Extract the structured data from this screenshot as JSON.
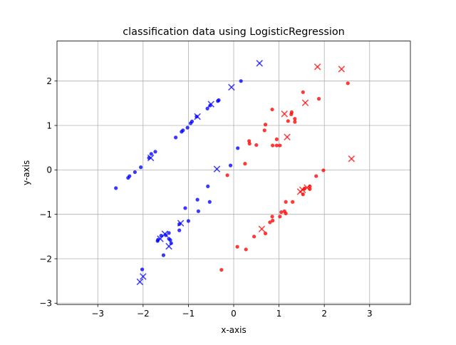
{
  "chart_data": {
    "type": "scatter",
    "title": "classification data using LogisticRegression",
    "xlabel": "x-axis",
    "ylabel": "y-axis",
    "xlim": [
      -3.9,
      3.9
    ],
    "ylim": [
      -3.03,
      2.9
    ],
    "xticks": [
      -3,
      -2,
      -1,
      0,
      1,
      2,
      3
    ],
    "yticks": [
      -3,
      -2,
      -1,
      0,
      1,
      2
    ],
    "xtick_labels": [
      "−3",
      "−2",
      "−1",
      "0",
      "1",
      "2",
      "3"
    ],
    "ytick_labels": [
      "−3",
      "−2",
      "−1",
      "0",
      "1",
      "2"
    ],
    "grid": true,
    "legend": "none",
    "series": [
      {
        "color": "#0000ff",
        "marker": "circle",
        "points": [
          [
            -2.6,
            -0.41
          ],
          [
            -2.33,
            -0.18
          ],
          [
            -2.3,
            -0.14
          ],
          [
            -2.18,
            -0.05
          ],
          [
            -2.05,
            0.06
          ],
          [
            -1.87,
            0.27
          ],
          [
            -1.82,
            0.36
          ],
          [
            -1.73,
            0.41
          ],
          [
            -1.28,
            0.73
          ],
          [
            -1.15,
            0.86
          ],
          [
            -1.12,
            0.89
          ],
          [
            -1.02,
            0.95
          ],
          [
            -0.95,
            1.05
          ],
          [
            -0.92,
            1.09
          ],
          [
            -0.82,
            1.2
          ],
          [
            -0.58,
            1.38
          ],
          [
            -0.52,
            1.45
          ],
          [
            -0.35,
            1.55
          ],
          [
            -0.33,
            1.57
          ],
          [
            0.16,
            2.0
          ],
          [
            -0.07,
            0.1
          ],
          [
            0.09,
            0.49
          ],
          [
            -0.57,
            -0.37
          ],
          [
            -0.53,
            -0.72
          ],
          [
            -0.8,
            -0.67
          ],
          [
            -0.78,
            -0.93
          ],
          [
            -1.07,
            -0.86
          ],
          [
            -1.0,
            -1.15
          ],
          [
            -1.2,
            -1.22
          ],
          [
            -1.2,
            -1.36
          ],
          [
            -1.43,
            -1.42
          ],
          [
            -1.5,
            -1.47
          ],
          [
            -1.6,
            -1.48
          ],
          [
            -1.67,
            -1.57
          ],
          [
            -1.68,
            -1.6
          ],
          [
            -1.4,
            -1.58
          ],
          [
            -1.38,
            -1.65
          ],
          [
            -1.55,
            -1.92
          ],
          [
            -2.02,
            -2.24
          ],
          [
            -1.43,
            -1.55
          ]
        ]
      },
      {
        "color": "#0000ff",
        "marker": "x",
        "points": [
          [
            0.57,
            2.4
          ],
          [
            -0.05,
            1.86
          ],
          [
            -0.5,
            1.48
          ],
          [
            -0.8,
            1.2
          ],
          [
            -1.83,
            0.27
          ],
          [
            -0.37,
            0.02
          ],
          [
            -1.17,
            -1.2
          ],
          [
            -1.52,
            -1.44
          ],
          [
            -1.62,
            -1.55
          ],
          [
            -1.43,
            -1.72
          ],
          [
            -2.0,
            -2.4
          ],
          [
            -2.07,
            -2.52
          ]
        ]
      },
      {
        "color": "#ff0000",
        "marker": "circle",
        "points": [
          [
            2.52,
            1.95
          ],
          [
            1.53,
            1.75
          ],
          [
            1.88,
            1.6
          ],
          [
            1.28,
            1.3
          ],
          [
            1.27,
            1.25
          ],
          [
            0.85,
            1.36
          ],
          [
            1.35,
            1.15
          ],
          [
            1.35,
            1.08
          ],
          [
            0.7,
            1.02
          ],
          [
            1.2,
            1.1
          ],
          [
            0.68,
            0.89
          ],
          [
            0.95,
            0.69
          ],
          [
            0.95,
            0.55
          ],
          [
            1.02,
            0.55
          ],
          [
            0.86,
            0.55
          ],
          [
            0.5,
            0.56
          ],
          [
            0.35,
            0.59
          ],
          [
            0.34,
            0.65
          ],
          [
            0.25,
            0.14
          ],
          [
            -0.14,
            -0.12
          ],
          [
            1.82,
            -0.14
          ],
          [
            1.98,
            -0.01
          ],
          [
            1.68,
            -0.37
          ],
          [
            1.68,
            -0.43
          ],
          [
            1.56,
            -0.42
          ],
          [
            1.53,
            -0.55
          ],
          [
            1.15,
            -0.72
          ],
          [
            1.3,
            -0.72
          ],
          [
            1.12,
            -0.93
          ],
          [
            1.15,
            -0.98
          ],
          [
            1.05,
            -0.95
          ],
          [
            1.02,
            -1.05
          ],
          [
            0.85,
            -1.05
          ],
          [
            0.86,
            -1.14
          ],
          [
            0.8,
            -1.18
          ],
          [
            0.7,
            -1.43
          ],
          [
            0.45,
            -1.5
          ],
          [
            0.08,
            -1.73
          ],
          [
            0.27,
            -1.79
          ],
          [
            -0.27,
            -2.25
          ]
        ]
      },
      {
        "color": "#ff0000",
        "marker": "x",
        "points": [
          [
            1.85,
            2.32
          ],
          [
            2.38,
            2.27
          ],
          [
            1.12,
            1.26
          ],
          [
            1.58,
            1.51
          ],
          [
            1.18,
            0.74
          ],
          [
            2.6,
            0.25
          ],
          [
            1.62,
            -0.4
          ],
          [
            1.52,
            -0.45
          ],
          [
            1.47,
            -0.49
          ],
          [
            0.62,
            -1.33
          ]
        ]
      }
    ]
  }
}
